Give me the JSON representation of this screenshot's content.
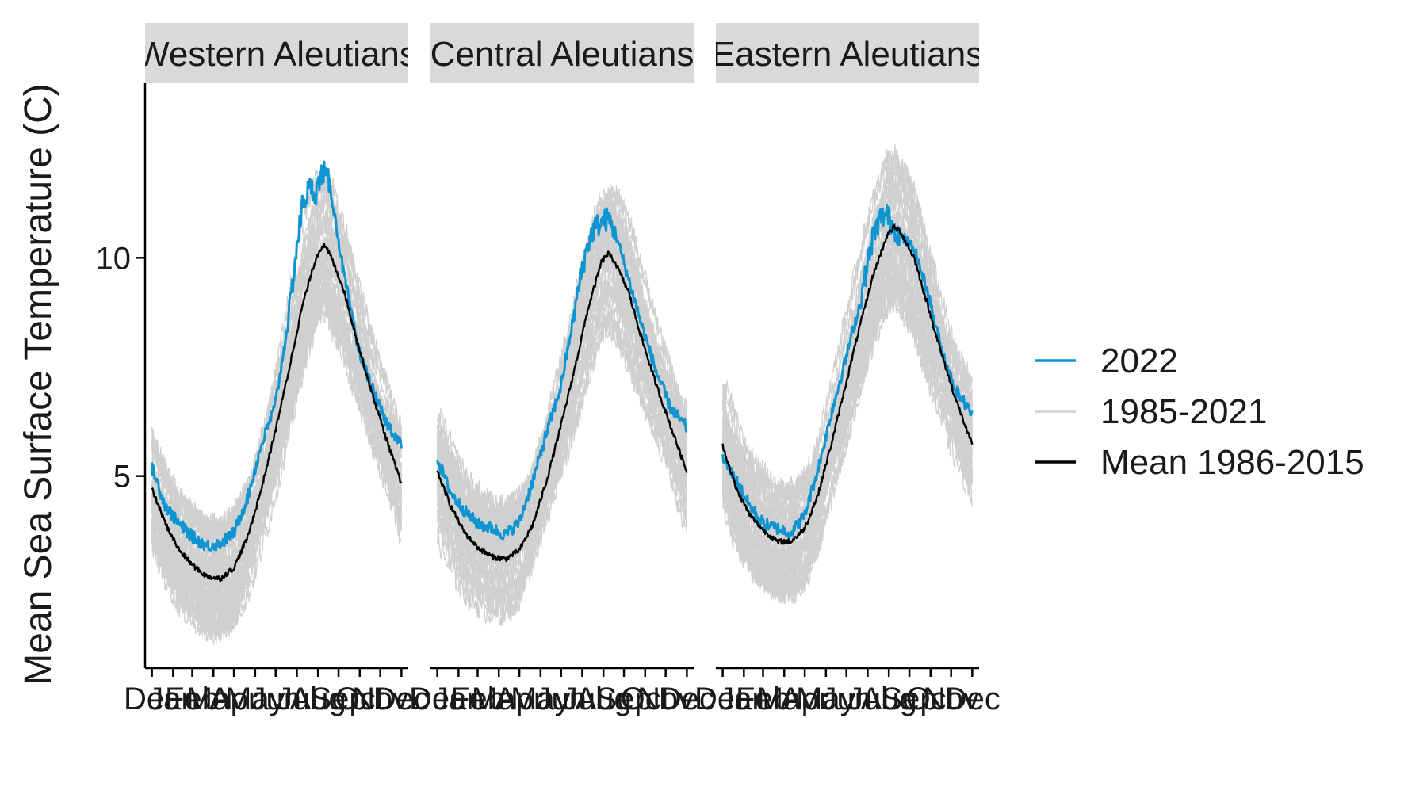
{
  "chart_data": {
    "type": "line",
    "ylabel": "Mean Sea Surface Temperature (C)",
    "xlabel": "",
    "ylim": [
      0.6,
      14.0
    ],
    "xlim": [
      -10,
      375
    ],
    "y_ticks": [
      5,
      10
    ],
    "x_tick_days": [
      0,
      31,
      59,
      90,
      120,
      151,
      181,
      212,
      243,
      273,
      304,
      334,
      365
    ],
    "x_tick_labels": [
      "Dec",
      "Jan",
      "Feb",
      "Mar",
      "Apr",
      "May",
      "Jun",
      "Jul",
      "Aug",
      "Sep",
      "Oct",
      "Nov",
      "Dec"
    ],
    "facets": [
      "Western Aleutians",
      "Central Aleutians",
      "Eastern Aleutians"
    ],
    "legend": {
      "position": "right",
      "entries": [
        {
          "name": "2022",
          "color": "#0F94D2"
        },
        {
          "name": "1985-2021",
          "color": "#D0D0D0"
        },
        {
          "name": "Mean 1986-2015",
          "color": "#000000"
        }
      ]
    },
    "series": [
      {
        "name": "Mean 1986-2015",
        "color": "#000000",
        "x": [
          0,
          20,
          40,
          60,
          80,
          100,
          120,
          140,
          160,
          180,
          200,
          220,
          240,
          250,
          260,
          280,
          300,
          320,
          340,
          365
        ],
        "values_by_facet": [
          [
            4.7,
            3.9,
            3.3,
            2.95,
            2.7,
            2.65,
            2.9,
            3.6,
            4.7,
            6.0,
            7.4,
            8.9,
            10.0,
            10.3,
            10.1,
            9.3,
            8.1,
            7.0,
            6.0,
            4.8
          ],
          [
            5.1,
            4.3,
            3.7,
            3.35,
            3.15,
            3.1,
            3.3,
            3.9,
            4.9,
            6.1,
            7.4,
            8.8,
            9.9,
            10.1,
            9.9,
            9.2,
            8.1,
            7.1,
            6.2,
            5.1
          ],
          [
            5.7,
            4.7,
            4.1,
            3.75,
            3.5,
            3.5,
            3.8,
            4.6,
            5.8,
            7.1,
            8.4,
            9.6,
            10.5,
            10.7,
            10.6,
            10.0,
            8.9,
            7.8,
            6.8,
            5.7
          ]
        ]
      },
      {
        "name": "2022",
        "color": "#0F94D2",
        "x": [
          0,
          20,
          40,
          60,
          80,
          100,
          120,
          140,
          160,
          180,
          200,
          210,
          220,
          230,
          240,
          250,
          260,
          280,
          300,
          320,
          340,
          365
        ],
        "values_by_facet": [
          [
            5.2,
            4.3,
            3.9,
            3.6,
            3.4,
            3.45,
            3.7,
            4.5,
            5.7,
            6.6,
            8.6,
            10.0,
            11.2,
            11.6,
            11.5,
            12.0,
            11.7,
            9.7,
            8.0,
            7.1,
            6.3,
            5.7
          ],
          [
            5.4,
            4.6,
            4.2,
            3.9,
            3.8,
            3.65,
            3.95,
            4.9,
            6.0,
            7.0,
            8.7,
            9.6,
            10.3,
            10.7,
            10.8,
            10.9,
            10.6,
            9.5,
            8.4,
            7.4,
            6.6,
            6.1
          ],
          [
            5.4,
            4.9,
            4.3,
            3.9,
            3.8,
            3.7,
            4.1,
            5.2,
            6.5,
            7.7,
            8.9,
            9.7,
            10.5,
            10.9,
            11.0,
            10.7,
            10.5,
            10.2,
            9.2,
            7.9,
            7.0,
            6.4
          ]
        ]
      },
      {
        "name": "1985-2021",
        "color": "#D0D0D0",
        "line_count": 37
      }
    ]
  }
}
